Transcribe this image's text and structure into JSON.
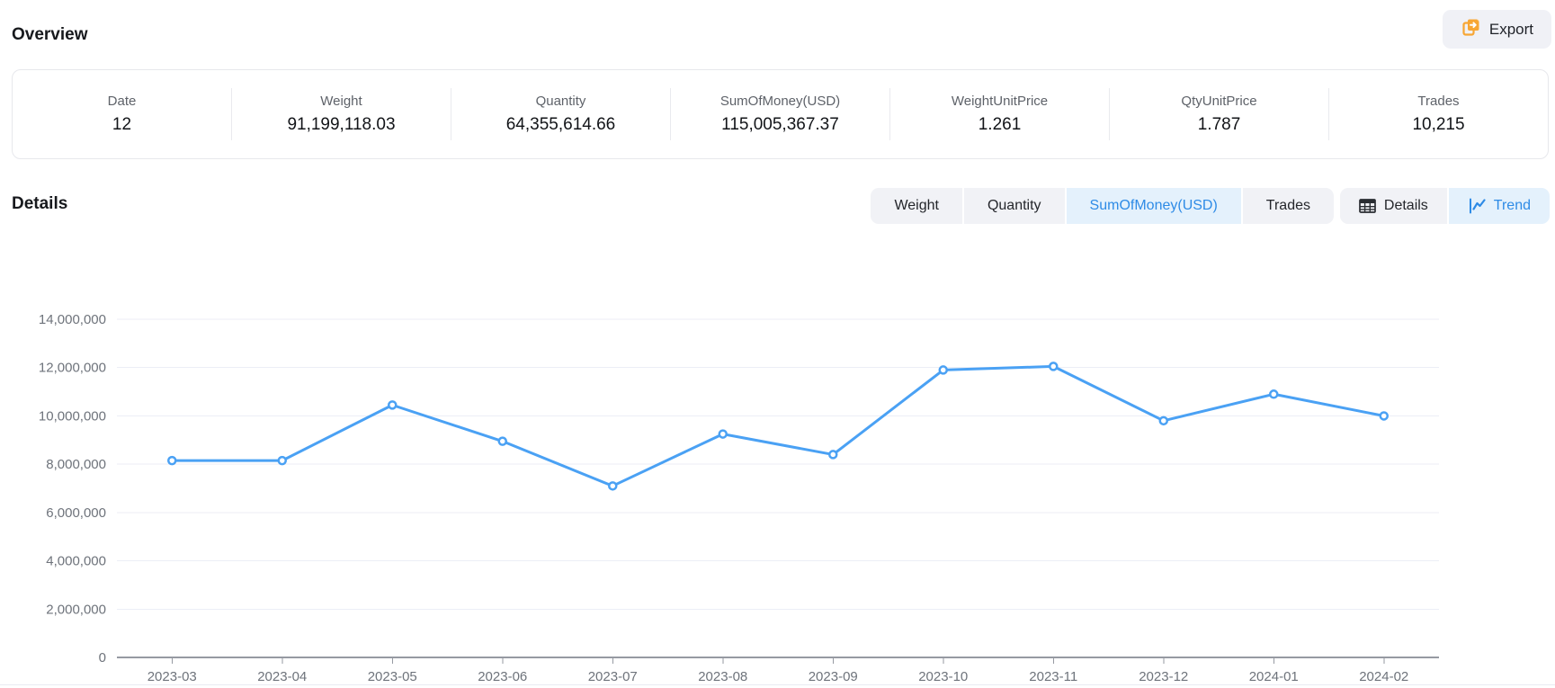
{
  "page": {
    "overview_title": "Overview",
    "details_title": "Details",
    "export_label": "Export"
  },
  "stats": {
    "items": [
      {
        "label": "Date",
        "value": "12"
      },
      {
        "label": "Weight",
        "value": "91,199,118.03"
      },
      {
        "label": "Quantity",
        "value": "64,355,614.66"
      },
      {
        "label": "SumOfMoney(USD)",
        "value": "115,005,367.37"
      },
      {
        "label": "WeightUnitPrice",
        "value": "1.261"
      },
      {
        "label": "QtyUnitPrice",
        "value": "1.787"
      },
      {
        "label": "Trades",
        "value": "10,215"
      }
    ]
  },
  "metric_tabs": {
    "items": [
      {
        "label": "Weight",
        "active": false
      },
      {
        "label": "Quantity",
        "active": false
      },
      {
        "label": "SumOfMoney(USD)",
        "active": true
      },
      {
        "label": "Trades",
        "active": false
      }
    ]
  },
  "view_tabs": {
    "items": [
      {
        "label": "Details",
        "icon": "table-icon",
        "active": false
      },
      {
        "label": "Trend",
        "icon": "trend-chart-icon",
        "active": true
      }
    ]
  },
  "colors": {
    "accent_blue": "#2e8be6",
    "line_blue": "#4aa1f4",
    "active_tab_bg": "#e4f1fc",
    "segment_bg": "#f1f2f6",
    "export_icon_orange": "#f7a634",
    "gridline": "#eceef6",
    "axis_line": "#969aa2",
    "axis_text": "#6e737b"
  },
  "chart_data": {
    "type": "line",
    "title": "",
    "xlabel": "",
    "ylabel": "",
    "categories": [
      "2023-03",
      "2023-04",
      "2023-05",
      "2023-06",
      "2023-07",
      "2023-08",
      "2023-09",
      "2023-10",
      "2023-11",
      "2023-12",
      "2024-01",
      "2024-02"
    ],
    "series": [
      {
        "name": "SumOfMoney(USD)",
        "values": [
          8150000,
          8150000,
          10450000,
          8950000,
          7100000,
          9250000,
          8400000,
          11900000,
          12050000,
          9800000,
          10900000,
          10000000
        ]
      }
    ],
    "ylim": [
      0,
      14000000
    ],
    "ytick_interval": 2000000,
    "grid": true,
    "legend_position": "none",
    "marker": "open-circle"
  }
}
